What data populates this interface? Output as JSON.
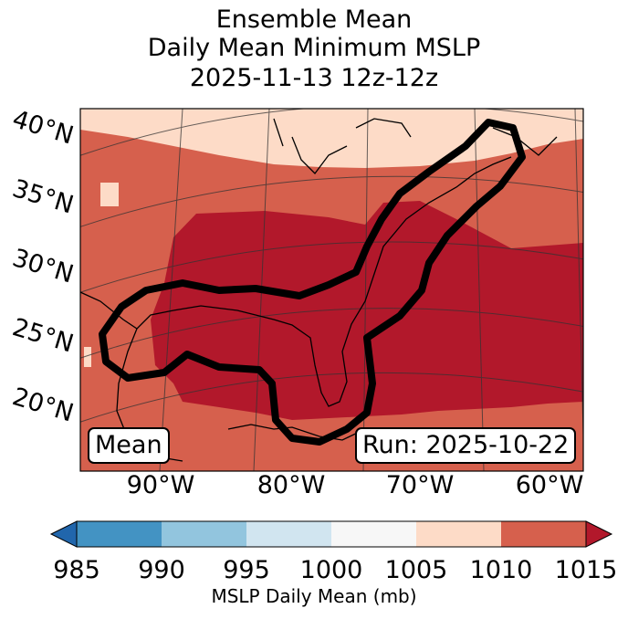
{
  "title": {
    "line1": "Ensemble Mean",
    "line2": "Daily Mean Minimum MSLP",
    "line3": "2025-11-13 12z-12z"
  },
  "lat_labels": [
    "40°N",
    "35°N",
    "30°N",
    "25°N",
    "20°N"
  ],
  "lon_labels": [
    "90°W",
    "80°W",
    "70°W",
    "60°W"
  ],
  "badges": {
    "mean": "Mean",
    "run": "Run: 2025-10-22"
  },
  "colorbar": {
    "ticks": [
      "985",
      "990",
      "995",
      "1000",
      "1005",
      "1010",
      "1015"
    ],
    "label": "MSLP Daily Mean (mb)",
    "colors": [
      "#2166ac",
      "#4393c3",
      "#92c5de",
      "#d1e5f0",
      "#f7f7f7",
      "#fddbc7",
      "#d6604d",
      "#b2182b"
    ]
  },
  "colors": {
    "band_1005_1010": "#fddbc7",
    "band_1010_1015": "#d6604d",
    "band_above_1015": "#b2182b",
    "contour": "#000000"
  }
}
